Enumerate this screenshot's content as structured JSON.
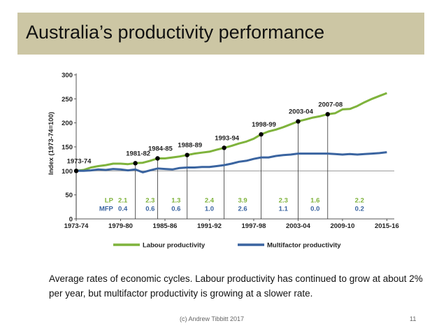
{
  "slide": {
    "title": "Australia’s productivity performance",
    "caption": "Average rates of economic cycles. Labour productivity has continued to grow at about 2% per year, but multifactor productivity is growing at a slower rate.",
    "footer_left": "(c) Andrew Tibbitt 2017",
    "page_number": "11"
  },
  "chart_data": {
    "type": "line",
    "title": "",
    "ylabel": "Index (1973-74=100)",
    "xlabel": "",
    "ylim": [
      0,
      300
    ],
    "yticks": [
      0,
      50,
      100,
      150,
      200,
      250,
      300
    ],
    "xlim": [
      1973,
      2016
    ],
    "xticks": [
      {
        "x": 1973,
        "label": "1973-74"
      },
      {
        "x": 1979,
        "label": "1979-80"
      },
      {
        "x": 1985,
        "label": "1985-86"
      },
      {
        "x": 1991,
        "label": "1991-92"
      },
      {
        "x": 1997,
        "label": "1997-98"
      },
      {
        "x": 2003,
        "label": "2003-04"
      },
      {
        "x": 2009,
        "label": "2009-10"
      },
      {
        "x": 2015,
        "label": "2015-16"
      }
    ],
    "grid": false,
    "reference_line": 100,
    "legend_position": "bottom",
    "series": [
      {
        "name": "Labour productivity",
        "color": "#7fb33c",
        "x": [
          1973,
          1974,
          1975,
          1976,
          1977,
          1978,
          1979,
          1980,
          1981,
          1982,
          1983,
          1984,
          1985,
          1986,
          1987,
          1988,
          1989,
          1990,
          1991,
          1992,
          1993,
          1994,
          1995,
          1996,
          1997,
          1998,
          1999,
          2000,
          2001,
          2002,
          2003,
          2004,
          2005,
          2006,
          2007,
          2008,
          2009,
          2010,
          2011,
          2012,
          2013,
          2014,
          2015
        ],
        "values": [
          100,
          102,
          107,
          110,
          112,
          115,
          115,
          114,
          116,
          117,
          121,
          126,
          126,
          128,
          130,
          133,
          136,
          138,
          140,
          144,
          148,
          152,
          157,
          161,
          167,
          176,
          182,
          186,
          191,
          197,
          203,
          207,
          211,
          214,
          218,
          220,
          228,
          229,
          235,
          243,
          250,
          256,
          262
        ]
      },
      {
        "name": "Multifactor productivity",
        "color": "#3a64a0",
        "x": [
          1973,
          1974,
          1975,
          1976,
          1977,
          1978,
          1979,
          1980,
          1981,
          1982,
          1983,
          1984,
          1985,
          1986,
          1987,
          1988,
          1989,
          1990,
          1991,
          1992,
          1993,
          1994,
          1995,
          1996,
          1997,
          1998,
          1999,
          2000,
          2001,
          2002,
          2003,
          2004,
          2005,
          2006,
          2007,
          2008,
          2009,
          2010,
          2011,
          2012,
          2013,
          2014,
          2015
        ],
        "values": [
          100,
          100,
          101,
          103,
          102,
          104,
          103,
          101,
          103,
          97,
          101,
          105,
          104,
          103,
          106,
          107,
          107,
          108,
          108,
          110,
          112,
          115,
          119,
          121,
          125,
          128,
          128,
          131,
          133,
          134,
          136,
          136,
          136,
          136,
          136,
          135,
          134,
          135,
          134,
          135,
          136,
          137,
          139
        ]
      }
    ],
    "cycle_peaks": [
      {
        "x": 1973,
        "label": "1973-74",
        "value": 100
      },
      {
        "x": 1981,
        "label": "1981-82",
        "value": 116
      },
      {
        "x": 1984,
        "label": "1984-85",
        "value": 126
      },
      {
        "x": 1988,
        "label": "1988-89",
        "value": 133
      },
      {
        "x": 1993,
        "label": "1993-94",
        "value": 148
      },
      {
        "x": 1998,
        "label": "1998-99",
        "value": 176
      },
      {
        "x": 2003,
        "label": "2003-04",
        "value": 203
      },
      {
        "x": 2007,
        "label": "2007-08",
        "value": 218
      }
    ],
    "cycle_rates": {
      "row_labels": [
        "LP",
        "MFP"
      ],
      "x": [
        1979.3,
        1983,
        1986.5,
        1991,
        1995.5,
        2001,
        2005.3,
        2011.3
      ],
      "lp": [
        "2.1",
        "2.3",
        "1.3",
        "2.4",
        "3.9",
        "2.3",
        "1.6",
        "2.2"
      ],
      "mfp": [
        "0.4",
        "0.6",
        "0.6",
        "1.0",
        "2.6",
        "1.1",
        "0.0",
        "0.2"
      ]
    }
  }
}
